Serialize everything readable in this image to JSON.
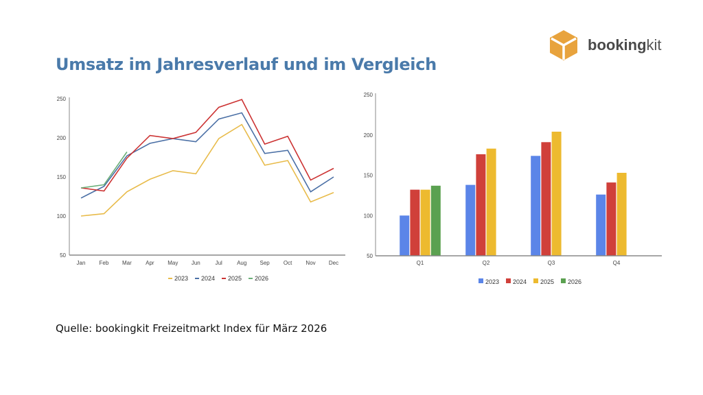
{
  "page": {
    "title": "Umsatz im Jahresverlauf und im Vergleich",
    "source": "Quelle: bookingkit Freizeitmarkt Index für März 2026",
    "logo": {
      "icon": "orange-cube-icon",
      "text_bold": "booking",
      "text_light": "kit",
      "color": "#e8a33d"
    }
  },
  "chart_data": [
    {
      "type": "line",
      "title": "",
      "xlabel": "",
      "ylabel": "",
      "categories": [
        "Jan",
        "Feb",
        "Mar",
        "Apr",
        "May",
        "Jun",
        "Jul",
        "Aug",
        "Sep",
        "Oct",
        "Nov",
        "Dec"
      ],
      "ylim": [
        50,
        250
      ],
      "yticks": [
        50,
        100,
        150,
        200,
        250
      ],
      "grid": false,
      "legend": "bottom",
      "series": [
        {
          "name": "2023",
          "color": "#e8bb4a",
          "values": [
            100,
            103,
            131,
            147,
            158,
            154,
            199,
            217,
            165,
            171,
            118,
            130
          ]
        },
        {
          "name": "2024",
          "color": "#4a6fa5",
          "values": [
            123,
            138,
            177,
            193,
            199,
            195,
            224,
            232,
            180,
            184,
            131,
            150
          ]
        },
        {
          "name": "2025",
          "color": "#cc3333",
          "values": [
            136,
            132,
            174,
            203,
            199,
            207,
            239,
            249,
            192,
            202,
            146,
            161
          ]
        },
        {
          "name": "2026",
          "color": "#6aaf78",
          "values": [
            136,
            140,
            182,
            null,
            null,
            null,
            null,
            null,
            null,
            null,
            null,
            null
          ]
        }
      ]
    },
    {
      "type": "bar",
      "title": "",
      "xlabel": "",
      "ylabel": "",
      "categories": [
        "Q1",
        "Q2",
        "Q3",
        "Q4"
      ],
      "ylim": [
        50,
        250
      ],
      "yticks": [
        50,
        100,
        150,
        200,
        250
      ],
      "grid": false,
      "legend": "bottom",
      "series": [
        {
          "name": "2023",
          "color": "#5b85e8",
          "values": [
            100,
            138,
            174,
            126
          ]
        },
        {
          "name": "2024",
          "color": "#d0403a",
          "values": [
            132,
            176,
            191,
            141
          ]
        },
        {
          "name": "2025",
          "color": "#edba2f",
          "values": [
            132,
            183,
            204,
            153
          ]
        },
        {
          "name": "2026",
          "color": "#5ba150",
          "values": [
            137,
            null,
            null,
            null
          ]
        }
      ]
    }
  ]
}
